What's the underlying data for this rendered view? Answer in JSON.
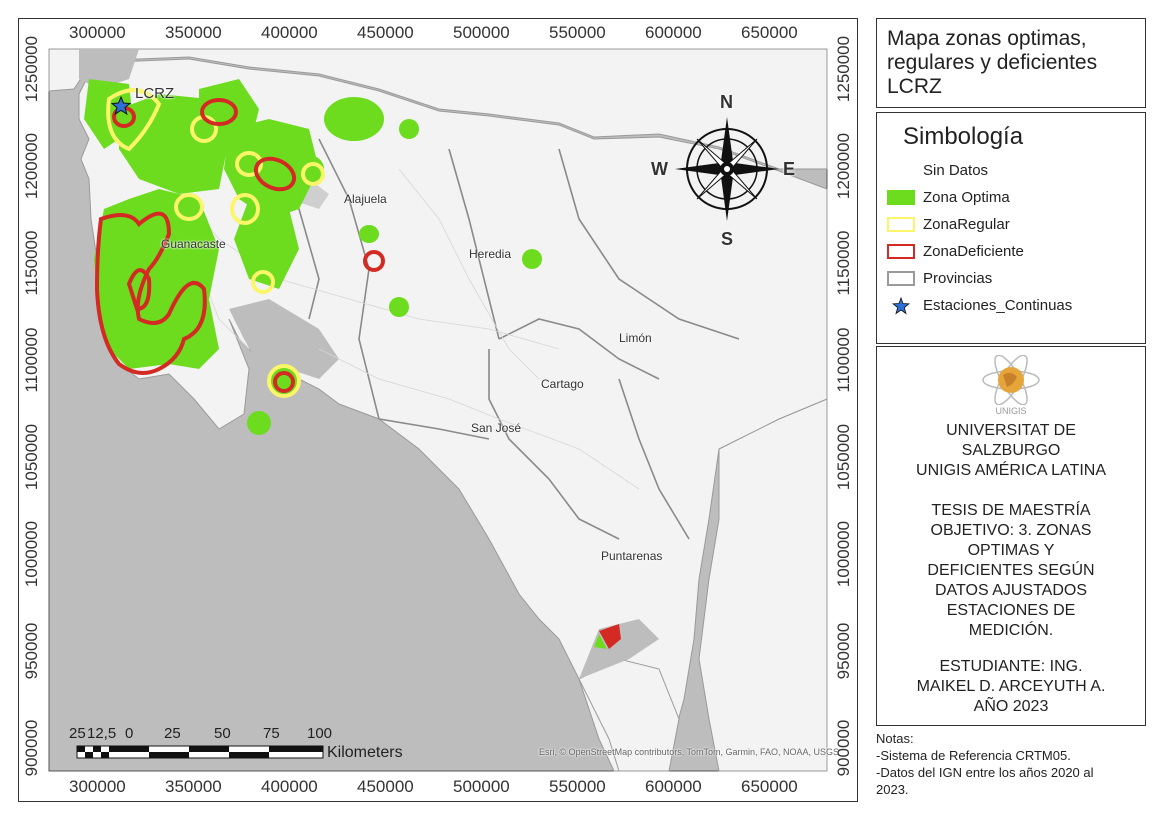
{
  "map": {
    "x_ticks": [
      "300000",
      "350000",
      "400000",
      "450000",
      "500000",
      "550000",
      "600000",
      "650000"
    ],
    "y_ticks": [
      "1250000",
      "1200000",
      "1150000",
      "1100000",
      "1050000",
      "1000000",
      "950000",
      "900000"
    ],
    "place_labels": {
      "lcrz": "LCRZ",
      "guanacaste": "Guanacaste",
      "alajuela": "Alajuela",
      "heredia": "Heredia",
      "limon": "Limón",
      "cartago": "Cartago",
      "san_jose": "San José",
      "puntarenas": "Puntarenas"
    },
    "compass": {
      "n": "N",
      "s": "S",
      "e": "E",
      "w": "W"
    },
    "attribution": "Esri, © OpenStreetMap contributors, TomTom, Garmin, FAO, NOAA, USGS",
    "scalebar": {
      "labels": [
        "25",
        "12,5",
        "0",
        "25",
        "50",
        "75",
        "100"
      ],
      "unit": "Kilometers"
    },
    "colors": {
      "land": "#f3f3f3",
      "water": "#bdbdbd",
      "optima": "#6ddc1f",
      "regular": "#fbf56a",
      "deficiente": "#d32b24",
      "provincias": "#9a9a9a",
      "station": "#2e6fd6"
    }
  },
  "title": {
    "lines": [
      "Mapa zonas optimas,",
      "regulares y deficientes",
      "LCRZ"
    ]
  },
  "legend": {
    "title": "Simbología",
    "items": [
      {
        "label": "Sin Datos",
        "symbol": "none"
      },
      {
        "label": "Zona Optima",
        "symbol": "fill-green"
      },
      {
        "label": "ZonaRegular",
        "symbol": "outline-yellow"
      },
      {
        "label": "ZonaDeficiente",
        "symbol": "outline-red"
      },
      {
        "label": "Provincias",
        "symbol": "outline-gray"
      },
      {
        "label": "Estaciones_Continuas",
        "symbol": "star-icon"
      }
    ]
  },
  "info": {
    "logo_text": "UNIGIS",
    "university": [
      "UNIVERSITAT DE",
      "SALZBURGO",
      "UNIGIS AMÉRICA LATINA"
    ],
    "thesis": [
      "TESIS DE MAESTRÍA",
      "OBJETIVO: 3. ZONAS",
      "OPTIMAS Y",
      "DEFICIENTES SEGÚN",
      "DATOS AJUSTADOS",
      "ESTACIONES DE",
      "MEDICIÓN."
    ],
    "student": [
      "ESTUDIANTE: ING.",
      "MAIKEL D. ARCEYUTH A.",
      "AÑO 2023"
    ]
  },
  "notes": {
    "lines": [
      "Notas:",
      "-Sistema de Referencia CRTM05.",
      "-Datos del IGN entre los años 2020 al",
      "2023."
    ]
  }
}
